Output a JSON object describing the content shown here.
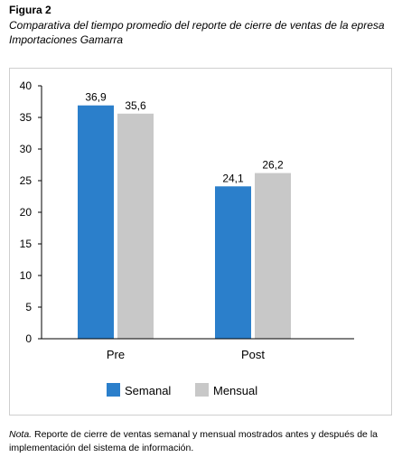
{
  "figure": {
    "label": "Figura 2",
    "title": "Comparativa del tiempo promedio del reporte de cierre de ventas de la epresa Importaciones Gamarra"
  },
  "note": {
    "prefix": "Nota.",
    "text": " Reporte de cierre de ventas semanal y mensual mostrados antes y después de la implementación del sistema de información."
  },
  "colors": {
    "semanal": "#2b7fcb",
    "mensual": "#c8c8c8",
    "axis": "#000000"
  },
  "chart_data": {
    "type": "bar",
    "categories": [
      "Pre",
      "Post"
    ],
    "series": [
      {
        "name": "Semanal",
        "values": [
          36.9,
          24.1
        ],
        "labels": [
          "36,9",
          "24,1"
        ]
      },
      {
        "name": "Mensual",
        "values": [
          35.6,
          26.2
        ],
        "labels": [
          "35,6",
          "26,2"
        ]
      }
    ],
    "ylim": [
      0,
      40
    ],
    "yticks": [
      0,
      5,
      10,
      15,
      20,
      25,
      30,
      35,
      40
    ],
    "grid": false,
    "legend": "bottom"
  }
}
